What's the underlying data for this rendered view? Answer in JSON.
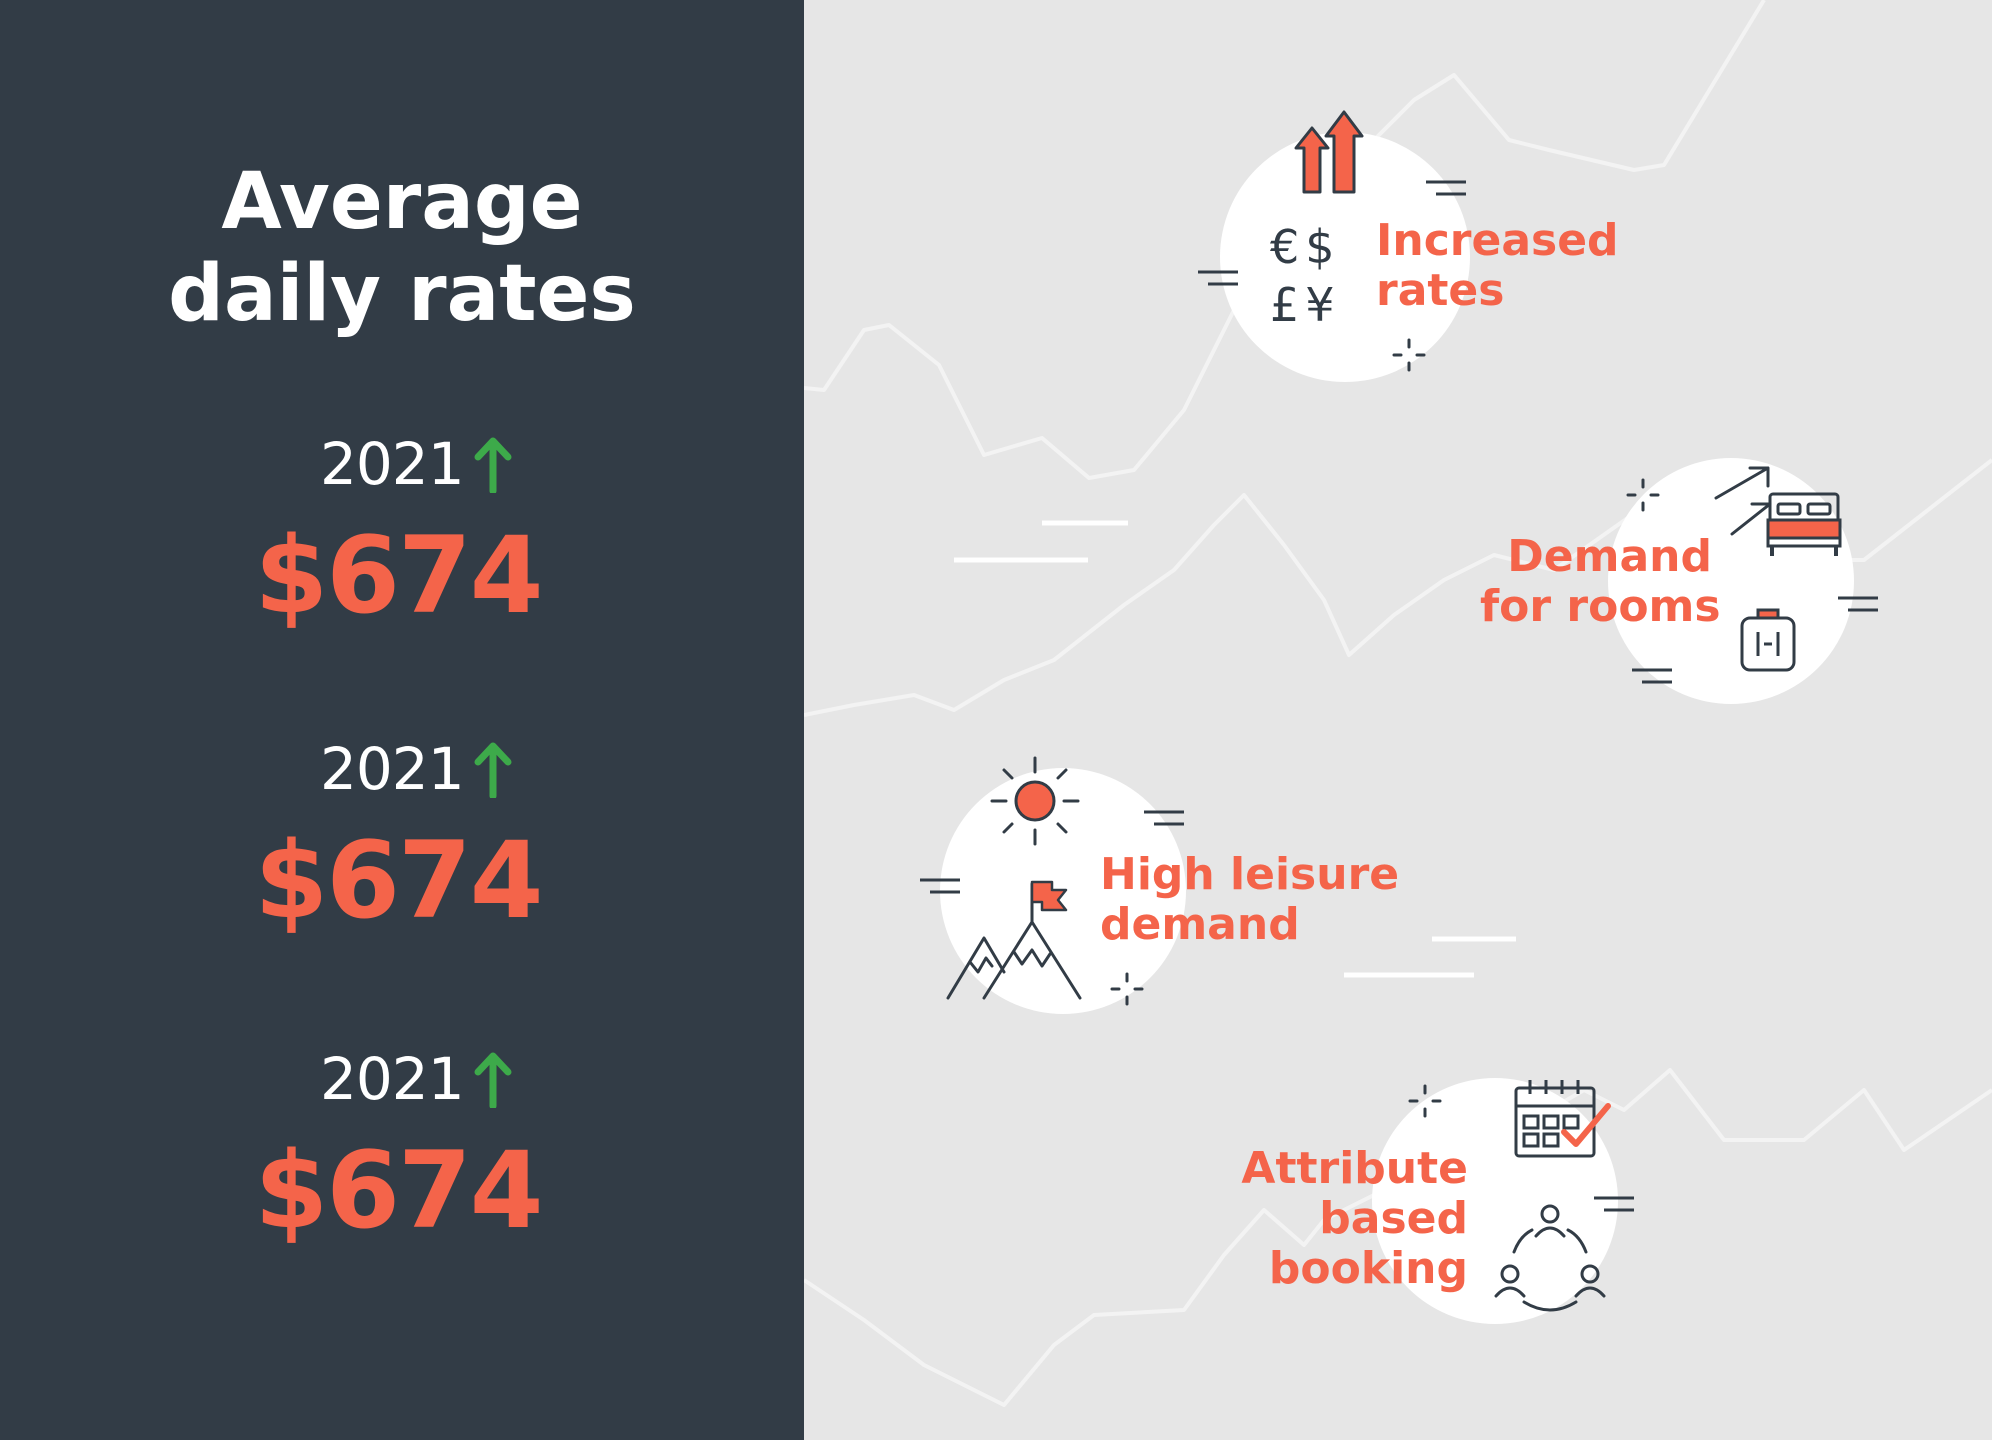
{
  "title": {
    "line1": "Average",
    "line2": "daily rates"
  },
  "stats": [
    {
      "year": "2021",
      "value": "$674",
      "trend": "up"
    },
    {
      "year": "2021",
      "value": "$674",
      "trend": "up"
    },
    {
      "year": "2021",
      "value": "$674",
      "trend": "up"
    }
  ],
  "factors": [
    {
      "line1": "Increased",
      "line2": "rates",
      "symbols": [
        "€",
        "$",
        "£",
        "¥"
      ],
      "icons": [
        "double-up-arrow-icon",
        "currency-icon"
      ]
    },
    {
      "line1": "Demand",
      "line2": "for rooms",
      "icons": [
        "diagonal-arrows-icon",
        "bed-icon",
        "luggage-icon"
      ]
    },
    {
      "line1": "High leisure",
      "line2": "demand",
      "icons": [
        "sun-icon",
        "mountain-flag-icon"
      ]
    },
    {
      "line1": "Attribute",
      "line2": "based",
      "line3": "booking",
      "icons": [
        "calendar-check-icon",
        "group-people-icon"
      ]
    }
  ],
  "colors": {
    "panel": "#323c46",
    "background": "#e6e6e6",
    "accent": "#f4644a",
    "trend_up": "#3daa4a",
    "icon_stroke": "#323c46"
  }
}
